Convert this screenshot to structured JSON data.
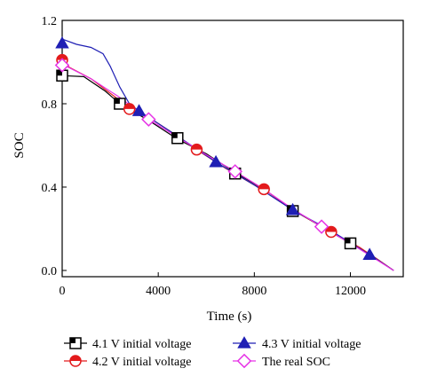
{
  "chart_data": {
    "type": "line",
    "title": "",
    "xlabel": "Time (s)",
    "ylabel": "SOC",
    "xlim": [
      0,
      14200
    ],
    "ylim": [
      -0.03,
      1.2
    ],
    "x_ticks": [
      0,
      4000,
      8000,
      12000
    ],
    "x_tick_labels": [
      "0",
      "4000",
      "8000",
      "12000"
    ],
    "y_ticks": [
      0.0,
      0.4,
      0.8,
      1.2
    ],
    "y_tick_labels": [
      "0.0",
      "0.4",
      "0.8",
      "1.2"
    ],
    "grid": false,
    "legend_position": "bottom",
    "series": [
      {
        "name": "4.1 V initial voltage",
        "color": "#000000",
        "marker": "square",
        "marker_fill": "#ffffff",
        "points": [
          [
            0,
            0.935
          ],
          [
            900,
            0.93
          ],
          [
            1800,
            0.86
          ],
          [
            2400,
            0.8
          ],
          [
            3600,
            0.72
          ],
          [
            4800,
            0.63
          ],
          [
            6000,
            0.56
          ],
          [
            7200,
            0.47
          ],
          [
            8400,
            0.39
          ],
          [
            9600,
            0.29
          ],
          [
            10800,
            0.21
          ],
          [
            12000,
            0.13
          ],
          [
            12800,
            0.08
          ],
          [
            13800,
            0.0
          ]
        ],
        "marker_points": [
          [
            0,
            0.935
          ],
          [
            2400,
            0.8
          ],
          [
            4800,
            0.635
          ],
          [
            7200,
            0.465
          ],
          [
            9600,
            0.285
          ],
          [
            12000,
            0.13
          ]
        ]
      },
      {
        "name": "4.2 V initial voltage",
        "color": "#e31a1c",
        "marker": "circle",
        "marker_fill": "#e31a1c",
        "points": [
          [
            0,
            1.01
          ],
          [
            300,
            0.975
          ],
          [
            1200,
            0.92
          ],
          [
            2000,
            0.85
          ],
          [
            2800,
            0.78
          ],
          [
            3800,
            0.72
          ],
          [
            4800,
            0.645
          ],
          [
            5600,
            0.58
          ],
          [
            6800,
            0.49
          ],
          [
            8000,
            0.41
          ],
          [
            8400,
            0.39
          ],
          [
            9600,
            0.29
          ],
          [
            11200,
            0.185
          ],
          [
            12400,
            0.11
          ],
          [
            13800,
            0.0
          ]
        ],
        "marker_points": [
          [
            0,
            1.01
          ],
          [
            2800,
            0.775
          ],
          [
            5600,
            0.58
          ],
          [
            8400,
            0.39
          ],
          [
            11200,
            0.185
          ]
        ]
      },
      {
        "name": "4.3 V initial voltage",
        "color": "#1f1fb4",
        "marker": "triangle",
        "marker_fill": "#1f1fb4",
        "points": [
          [
            0,
            1.11
          ],
          [
            600,
            1.085
          ],
          [
            1200,
            1.07
          ],
          [
            1700,
            1.04
          ],
          [
            2000,
            0.98
          ],
          [
            2400,
            0.88
          ],
          [
            2800,
            0.8
          ],
          [
            3200,
            0.765
          ],
          [
            3800,
            0.72
          ],
          [
            4800,
            0.645
          ],
          [
            6400,
            0.52
          ],
          [
            8000,
            0.41
          ],
          [
            9600,
            0.29
          ],
          [
            11200,
            0.19
          ],
          [
            12800,
            0.075
          ],
          [
            13800,
            0.0
          ]
        ],
        "marker_points": [
          [
            0,
            1.09
          ],
          [
            3200,
            0.765
          ],
          [
            6400,
            0.52
          ],
          [
            9600,
            0.29
          ],
          [
            12800,
            0.075
          ]
        ]
      },
      {
        "name": "The real SOC",
        "color": "#e633e6",
        "marker": "diamond",
        "marker_fill": "#ffffff",
        "points": [
          [
            0,
            0.99
          ],
          [
            1200,
            0.92
          ],
          [
            2400,
            0.83
          ],
          [
            3600,
            0.725
          ],
          [
            4800,
            0.64
          ],
          [
            6000,
            0.555
          ],
          [
            7200,
            0.475
          ],
          [
            8400,
            0.39
          ],
          [
            9600,
            0.295
          ],
          [
            10800,
            0.21
          ],
          [
            12000,
            0.13
          ],
          [
            13800,
            0.0
          ]
        ],
        "marker_points": [
          [
            0,
            0.985
          ],
          [
            3600,
            0.725
          ],
          [
            7200,
            0.475
          ],
          [
            10800,
            0.21
          ]
        ]
      }
    ]
  }
}
